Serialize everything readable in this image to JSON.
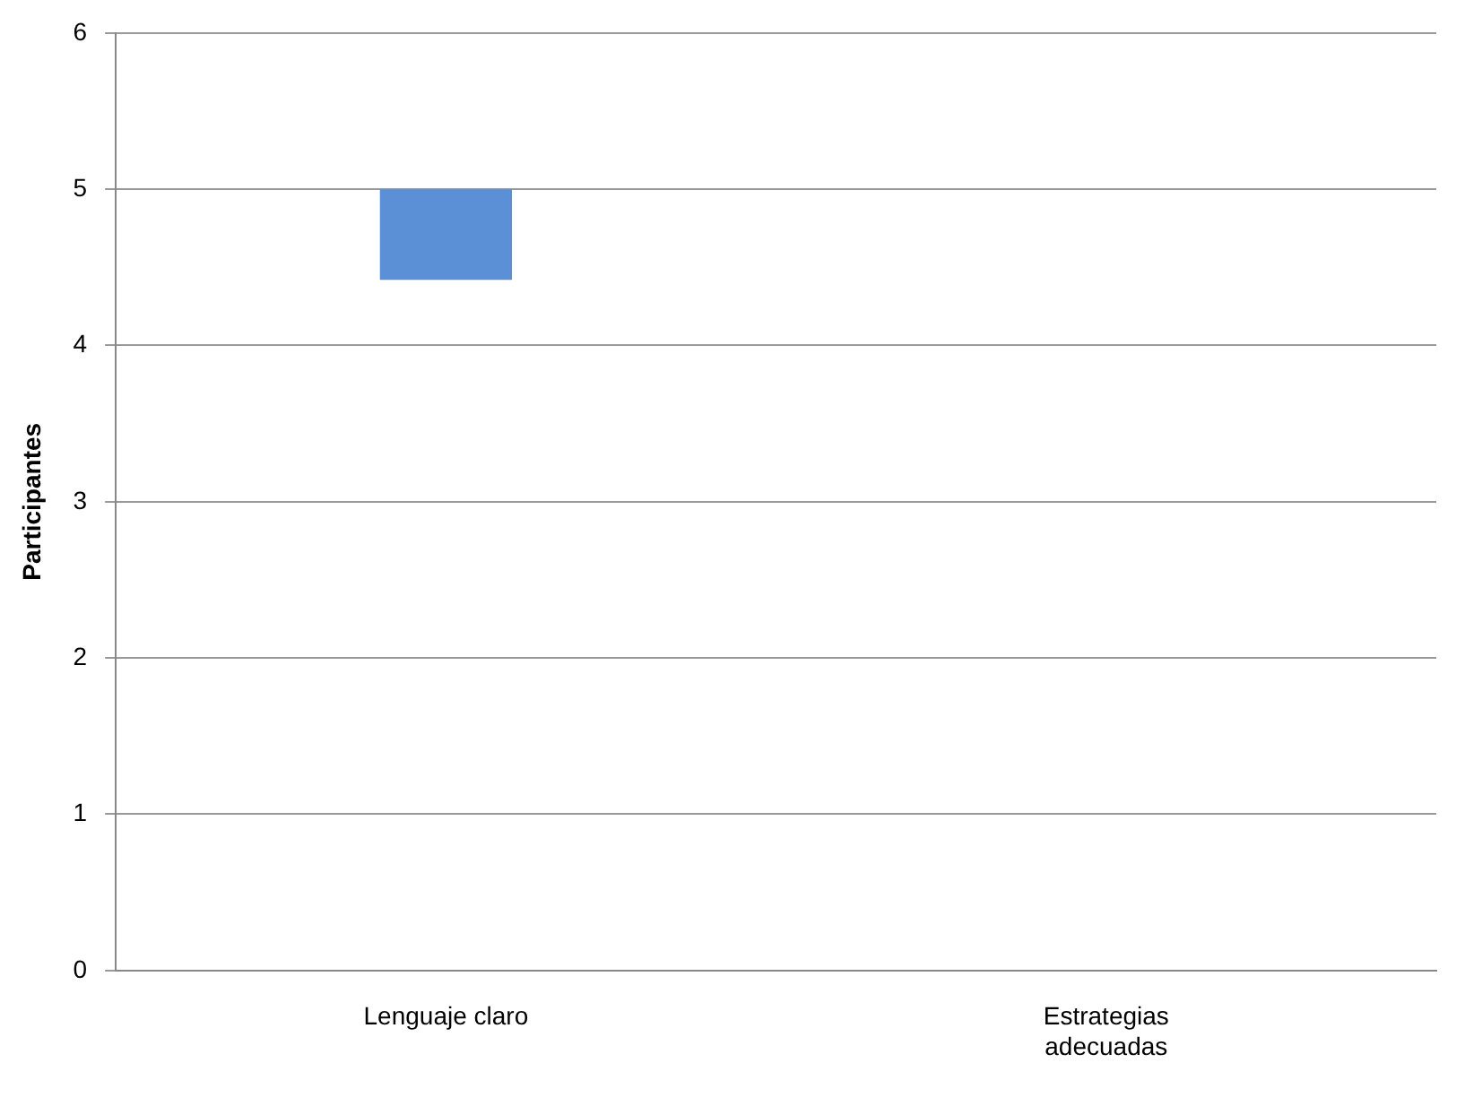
{
  "chart_data": {
    "type": "bar",
    "ylabel": "Participantes",
    "categories": [
      "Lenguaje claro",
      "Estrategias adecuadas"
    ],
    "values": [
      0.58,
      null
    ],
    "base": [
      4.42,
      null
    ],
    "color": "#5b8fd6",
    "ylim": [
      0,
      6
    ],
    "yticks": [
      0,
      1,
      2,
      3,
      4,
      5,
      6
    ],
    "grid": "y"
  }
}
